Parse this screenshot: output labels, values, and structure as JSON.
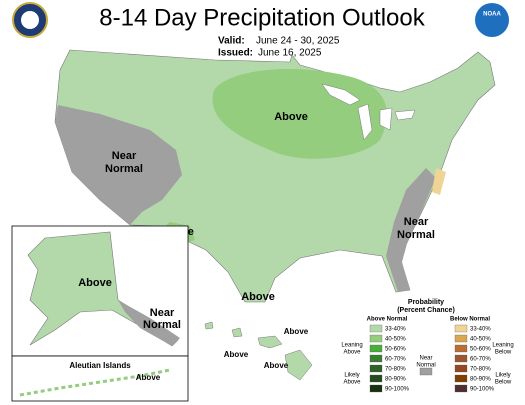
{
  "header": {
    "title": "8-14 Day Precipitation Outlook",
    "valid_label": "Valid:",
    "valid": "June 24 - 30, 2025",
    "issued_label": "Issued:",
    "issued": "June 16, 2025",
    "logo": "NOAA"
  },
  "regions": {
    "midwest": "Above",
    "west": [
      "Near",
      "Normal"
    ],
    "southwest": "Above",
    "texas": "Above",
    "southeast": [
      "Near",
      "Normal"
    ]
  },
  "alaska": {
    "main": "Above",
    "southeast": [
      "Near",
      "Normal"
    ],
    "aleutian_title": "Aleutian Islands",
    "aleutian": "Above"
  },
  "hawaii": {
    "labels": [
      "Above",
      "Above",
      "Above"
    ]
  },
  "legend": {
    "title": [
      "Probability",
      "(Percent Chance)"
    ],
    "above_title": "Above Normal",
    "below_title": "Below Normal",
    "near": [
      "Near",
      "Normal"
    ],
    "leaning_above": [
      "Leaning",
      "Above"
    ],
    "likely_above": [
      "Likely",
      "Above"
    ],
    "leaning_below": [
      "Leaning",
      "Below"
    ],
    "likely_below": [
      "Likely",
      "Below"
    ],
    "bins": [
      "33-40%",
      "40-50%",
      "50-60%",
      "60-70%",
      "70-80%",
      "80-90%",
      "90-100%"
    ],
    "above_colors": [
      "#b3d9ab",
      "#94cd7e",
      "#48ae38",
      "#3a7e30",
      "#2f6226",
      "#244a1d",
      "#183110"
    ],
    "below_colors": [
      "#f0d493",
      "#d8a750",
      "#bb6d33",
      "#9b5631",
      "#934722",
      "#804000",
      "#4f2f2f"
    ],
    "near_color": "#a0a0a0"
  }
}
